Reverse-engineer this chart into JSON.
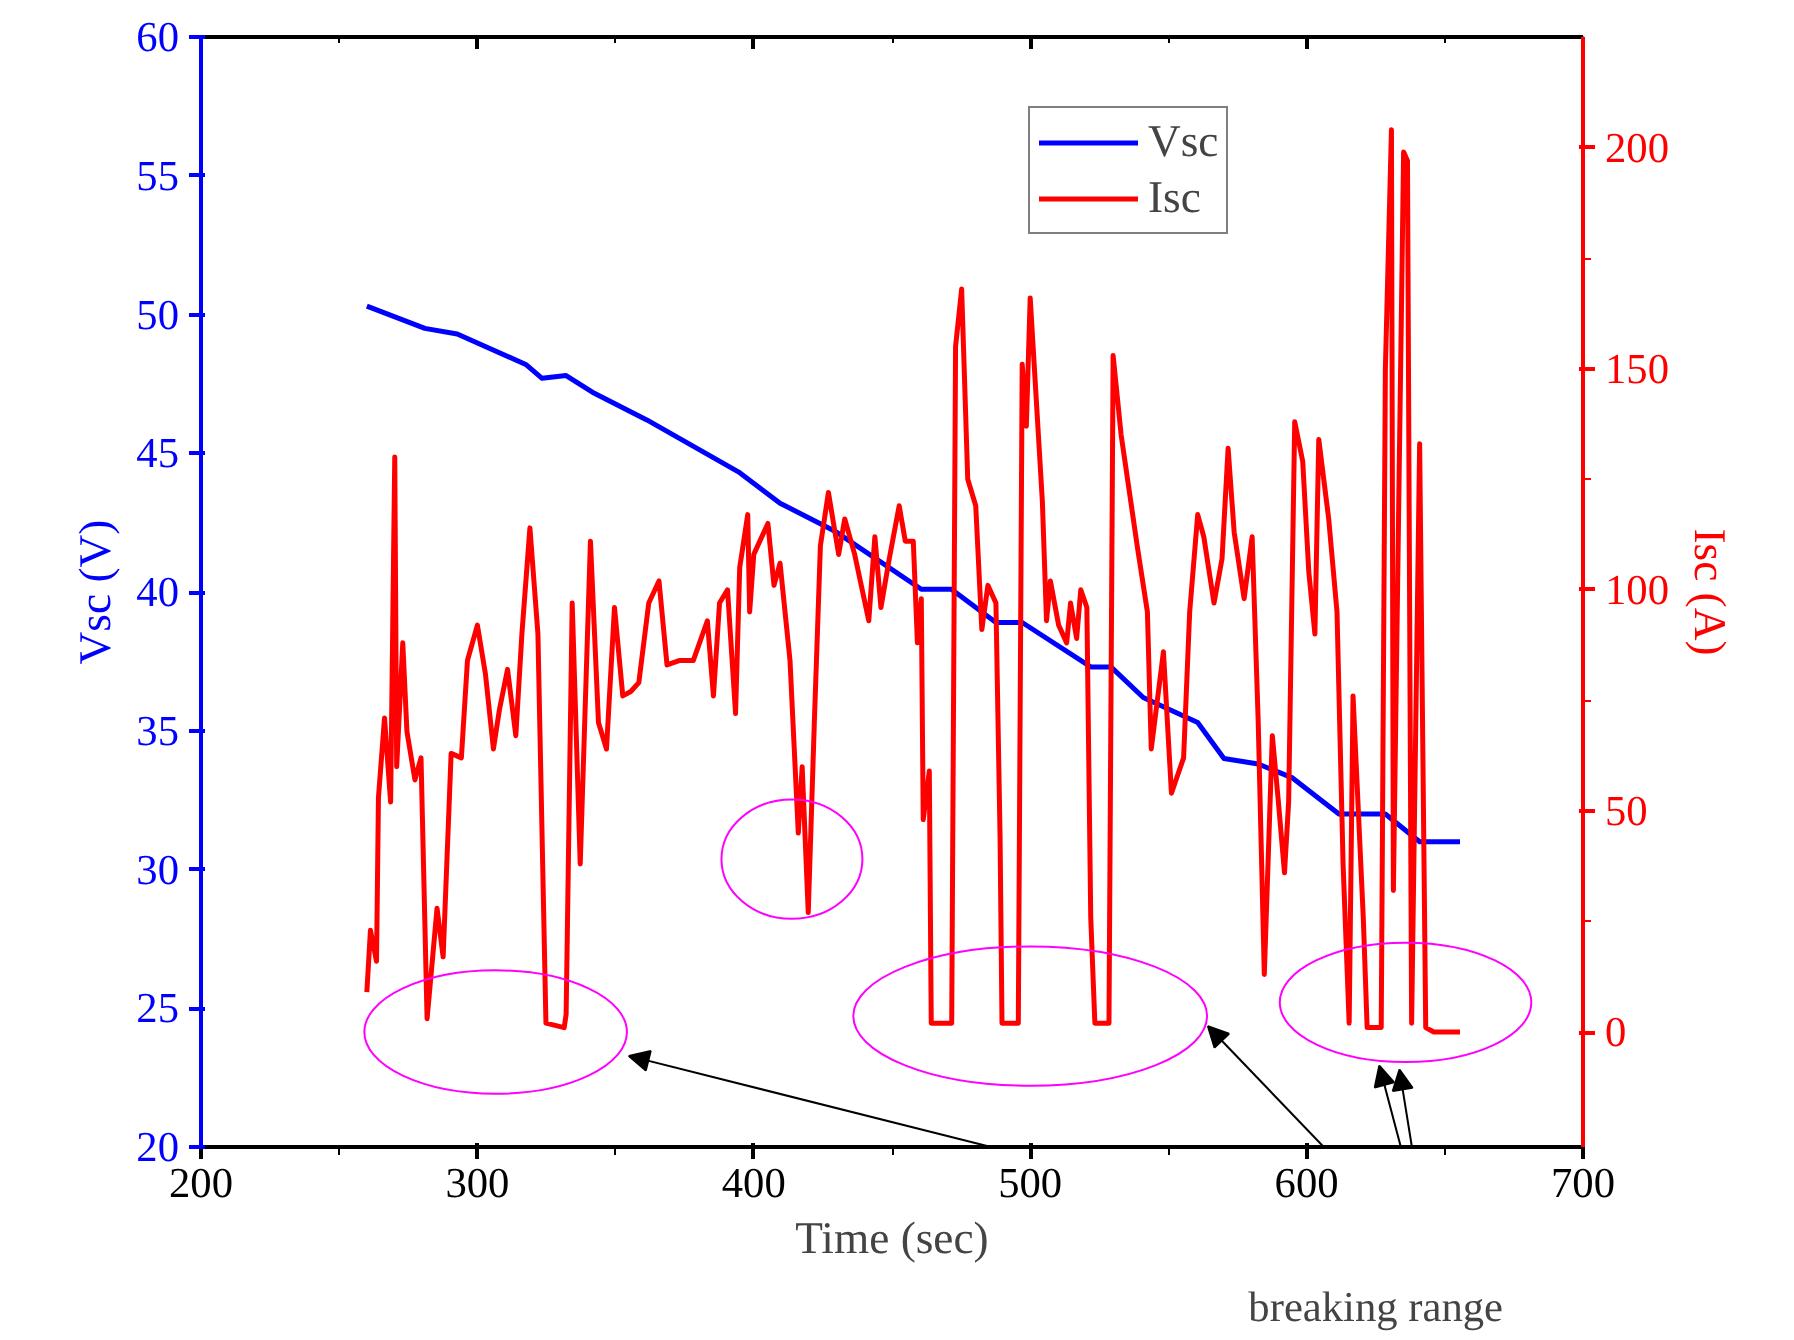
{
  "chart_data": {
    "type": "line",
    "xlabel": "Time (sec)",
    "ylabel": "Vsc (V)",
    "y2label": "Isc (A)",
    "xlim": [
      200,
      700
    ],
    "xticks": [
      200,
      300,
      400,
      500,
      600,
      700
    ],
    "ylim": [
      20,
      60
    ],
    "yticks": [
      20,
      25,
      30,
      35,
      40,
      45,
      50,
      55,
      60
    ],
    "y2lim": [
      -26,
      225
    ],
    "y2ticks": [
      0,
      50,
      100,
      150,
      200
    ],
    "grid": false,
    "legend": "top right",
    "marker": "none",
    "line_style": "solid",
    "annotations": [
      "breaking range"
    ],
    "series": [
      {
        "name": "Vsc",
        "color": "#0000ff",
        "x": [
          260,
          281,
          292.7,
          317.5,
          323.4,
          332.1,
          341.6,
          361.3,
          394.9,
          409.5,
          429.2,
          460.6,
          471.5,
          487.6,
          497.1,
          521.9,
          529.2,
          540.9,
          560.6,
          570.1,
          582.5,
          594.9,
          611.7,
          628.5,
          640.9,
          655.5
        ],
        "values": [
          50.3,
          49.5,
          49.3,
          48.2,
          47.7,
          47.8,
          47.2,
          46.2,
          44.3,
          43.2,
          42.2,
          40.1,
          40.1,
          38.9,
          38.9,
          37.3,
          37.3,
          36.2,
          35.3,
          34.0,
          33.8,
          33.3,
          32.0,
          32.0,
          31.0,
          31.0
        ]
      },
      {
        "name": "Isc",
        "color": "#ff0000",
        "axis": "y2",
        "x": [
          260,
          261.3,
          263.5,
          264.2,
          266.4,
          268.6,
          270.1,
          270.8,
          273,
          274.5,
          277.4,
          279.6,
          281.8,
          285.4,
          287.6,
          290.5,
          294.2,
          296.4,
          300,
          302.9,
          305.8,
          308,
          310.9,
          313.9,
          316.1,
          319,
          321.9,
          324.8,
          331.4,
          332.1,
          334.3,
          337.2,
          340.9,
          343.8,
          346.7,
          349.6,
          352.6,
          355.5,
          358.4,
          362,
          365.7,
          368.6,
          373,
          378.1,
          383.2,
          385.4,
          387.6,
          390.5,
          393.4,
          394.9,
          397.8,
          398.5,
          400,
          405.1,
          407.3,
          409.5,
          413.1,
          416.1,
          417.5,
          419.7,
          421.9,
          424.1,
          427,
          430.7,
          432.9,
          436.5,
          441.6,
          443.8,
          446,
          449,
          452.6,
          454.8,
          457.7,
          459.2,
          460.6,
          461.3,
          463.5,
          464.2,
          471.6,
          473,
          475.2,
          477.4,
          480.3,
          482.5,
          484.7,
          487.6,
          489.1,
          489.8,
          495.7,
          497.1,
          498.6,
          500,
          504.4,
          505.9,
          507.3,
          510.3,
          513.2,
          514.6,
          516.8,
          518.3,
          520.5,
          521.9,
          523.4,
          528.5,
          530,
          532.9,
          538.7,
          542.4,
          543.8,
          548.2,
          551.1,
          555.5,
          557.7,
          560.6,
          562.8,
          566.5,
          569.4,
          571.6,
          573.8,
          577.4,
          580.3,
          582.5,
          584.7,
          587.6,
          589.8,
          592,
          593.5,
          595.7,
          598.6,
          600.8,
          603,
          604.4,
          608,
          611,
          613.2,
          615.4,
          616.8,
          620.5,
          621.9,
          627,
          628.5,
          630.7,
          631.4,
          635.1,
          636.5,
          638,
          640.9,
          643.1,
          646,
          655.5
        ],
        "values": [
          9,
          23,
          16,
          53,
          71,
          52,
          130,
          60,
          88,
          68,
          57,
          62,
          3,
          28,
          17,
          63,
          62,
          84,
          92,
          81,
          64,
          73,
          82,
          67,
          90,
          114,
          90,
          2,
          1,
          4,
          97,
          38,
          111,
          70,
          64,
          96,
          76,
          77,
          79,
          97,
          102,
          83,
          84,
          84,
          93,
          76,
          97,
          100,
          72,
          105,
          117,
          95,
          108,
          115,
          101,
          106,
          84,
          45,
          60,
          27,
          70,
          110,
          122,
          108,
          116,
          108,
          93,
          112,
          96,
          107,
          119,
          111,
          111,
          88,
          98,
          48,
          59,
          2,
          2,
          155,
          168,
          125,
          119,
          91,
          101,
          97,
          44,
          2,
          2,
          151,
          137,
          166,
          120,
          93,
          102,
          92,
          88,
          97,
          89,
          100,
          96,
          26,
          2,
          2,
          153,
          135,
          110,
          95,
          64,
          86,
          54,
          62,
          95,
          117,
          112,
          97,
          107,
          132,
          113,
          98,
          112,
          70,
          13,
          67,
          52,
          36,
          52,
          138,
          129,
          104,
          90,
          134,
          116,
          95,
          38,
          2,
          76,
          26,
          1,
          1,
          150,
          204,
          32,
          199,
          197,
          2,
          133,
          1,
          0,
          0
        ]
      }
    ]
  }
}
